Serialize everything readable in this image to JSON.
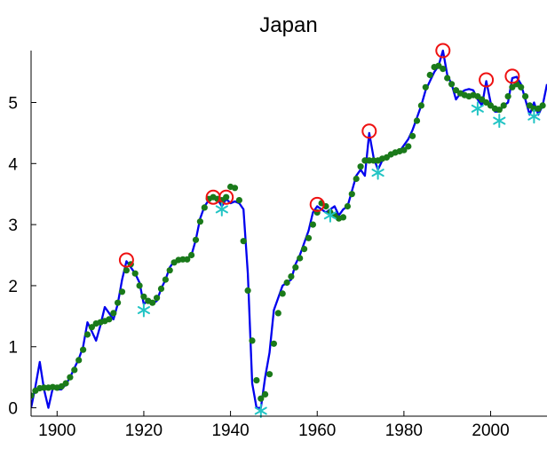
{
  "chart_data": {
    "type": "line",
    "title": "Japan",
    "xlabel": "",
    "ylabel": "",
    "xlim": [
      1894,
      2013
    ],
    "ylim": [
      -0.05,
      5.85
    ],
    "x_ticks": [
      1900,
      1920,
      1940,
      1960,
      1980,
      2000
    ],
    "y_ticks": [
      0,
      1,
      2,
      3,
      4,
      5
    ],
    "grid": false,
    "legend": "none",
    "colors": {
      "line": "#0000ee",
      "trend": "#1a7a1a",
      "peak": "#ee1111",
      "trough": "#22c4c4"
    },
    "series": [
      {
        "style": "line",
        "x": [
          1894,
          1895,
          1896,
          1897,
          1898,
          1899,
          1900,
          1901,
          1902,
          1903,
          1904,
          1905,
          1906,
          1907,
          1908,
          1909,
          1910,
          1911,
          1912,
          1913,
          1914,
          1915,
          1916,
          1917,
          1918,
          1919,
          1920,
          1921,
          1922,
          1923,
          1924,
          1925,
          1926,
          1927,
          1928,
          1929,
          1930,
          1931,
          1932,
          1933,
          1934,
          1935,
          1936,
          1937,
          1938,
          1939,
          1940,
          1941,
          1942,
          1943,
          1944,
          1945,
          1946,
          1947,
          1948,
          1949,
          1950,
          1951,
          1952,
          1953,
          1954,
          1955,
          1956,
          1957,
          1958,
          1959,
          1960,
          1961,
          1962,
          1963,
          1964,
          1965,
          1966,
          1967,
          1968,
          1969,
          1970,
          1971,
          1972,
          1973,
          1974,
          1975,
          1976,
          1977,
          1978,
          1979,
          1980,
          1981,
          1982,
          1983,
          1984,
          1985,
          1986,
          1987,
          1988,
          1989,
          1990,
          1991,
          1992,
          1993,
          1994,
          1995,
          1996,
          1997,
          1998,
          1999,
          2000,
          2001,
          2002,
          2003,
          2004,
          2005,
          2006,
          2007,
          2008,
          2009,
          2010,
          2011,
          2012,
          2013
        ],
        "y": [
          0.0,
          0.35,
          0.75,
          0.3,
          0.0,
          0.32,
          0.3,
          0.3,
          0.38,
          0.5,
          0.65,
          0.8,
          1.0,
          1.4,
          1.25,
          1.1,
          1.35,
          1.65,
          1.55,
          1.45,
          1.7,
          2.1,
          2.4,
          2.3,
          2.2,
          2.05,
          1.7,
          1.75,
          1.7,
          1.75,
          1.95,
          2.1,
          2.3,
          2.4,
          2.42,
          2.45,
          2.45,
          2.5,
          2.75,
          3.1,
          3.3,
          3.4,
          3.45,
          3.42,
          3.3,
          3.42,
          3.35,
          3.38,
          3.35,
          3.25,
          2.2,
          0.4,
          0.0,
          0.0,
          0.5,
          0.9,
          1.6,
          1.8,
          2.0,
          2.05,
          2.1,
          2.35,
          2.5,
          2.7,
          2.9,
          3.2,
          3.3,
          3.25,
          3.2,
          3.25,
          3.3,
          3.15,
          3.25,
          3.3,
          3.55,
          3.8,
          3.9,
          3.8,
          4.5,
          4.1,
          3.9,
          4.05,
          4.1,
          4.12,
          4.18,
          4.2,
          4.3,
          4.4,
          4.55,
          4.75,
          4.95,
          5.2,
          5.35,
          5.5,
          5.6,
          5.85,
          5.45,
          5.3,
          5.05,
          5.15,
          5.2,
          5.22,
          5.2,
          5.05,
          4.95,
          5.35,
          5.0,
          4.85,
          4.85,
          4.95,
          5.0,
          5.4,
          5.42,
          5.3,
          5.05,
          4.8,
          5.0,
          4.8,
          4.95,
          5.3
        ]
      },
      {
        "style": "dots",
        "x": [
          1894,
          1895,
          1896,
          1897,
          1898,
          1899,
          1900,
          1901,
          1902,
          1903,
          1904,
          1905,
          1906,
          1907,
          1908,
          1909,
          1910,
          1911,
          1912,
          1913,
          1914,
          1915,
          1916,
          1917,
          1918,
          1919,
          1920,
          1921,
          1922,
          1923,
          1924,
          1925,
          1926,
          1927,
          1928,
          1929,
          1930,
          1931,
          1932,
          1933,
          1934,
          1935,
          1936,
          1937,
          1938,
          1939,
          1940,
          1941,
          1942,
          1943,
          1944,
          1945,
          1946,
          1947,
          1948,
          1949,
          1950,
          1951,
          1952,
          1953,
          1954,
          1955,
          1956,
          1957,
          1958,
          1959,
          1960,
          1961,
          1962,
          1963,
          1964,
          1965,
          1966,
          1967,
          1968,
          1969,
          1970,
          1971,
          1972,
          1973,
          1974,
          1975,
          1976,
          1977,
          1978,
          1979,
          1980,
          1981,
          1982,
          1983,
          1984,
          1985,
          1986,
          1987,
          1988,
          1989,
          1990,
          1991,
          1992,
          1993,
          1994,
          1995,
          1996,
          1997,
          1998,
          1999,
          2000,
          2001,
          2002,
          2003,
          2004,
          2005,
          2006,
          2007,
          2008,
          2009,
          2010,
          2011,
          2012
        ],
        "y": [
          0.2,
          0.28,
          0.32,
          0.33,
          0.33,
          0.34,
          0.33,
          0.35,
          0.4,
          0.5,
          0.62,
          0.78,
          0.95,
          1.2,
          1.32,
          1.38,
          1.4,
          1.42,
          1.45,
          1.55,
          1.72,
          1.9,
          2.25,
          2.35,
          2.2,
          2.0,
          1.82,
          1.75,
          1.72,
          1.8,
          1.95,
          2.1,
          2.25,
          2.38,
          2.42,
          2.43,
          2.43,
          2.5,
          2.75,
          3.05,
          3.28,
          3.42,
          3.45,
          3.42,
          3.4,
          3.45,
          3.62,
          3.6,
          3.4,
          2.73,
          1.92,
          1.1,
          0.45,
          0.15,
          0.22,
          0.55,
          1.05,
          1.55,
          1.87,
          2.05,
          2.15,
          2.3,
          2.45,
          2.6,
          2.78,
          3.0,
          3.2,
          3.35,
          3.3,
          3.2,
          3.15,
          3.1,
          3.12,
          3.3,
          3.5,
          3.75,
          3.95,
          4.05,
          4.05,
          4.05,
          4.05,
          4.08,
          4.1,
          4.15,
          4.18,
          4.2,
          4.22,
          4.28,
          4.45,
          4.7,
          4.95,
          5.25,
          5.45,
          5.58,
          5.6,
          5.55,
          5.4,
          5.3,
          5.2,
          5.15,
          5.12,
          5.1,
          5.12,
          5.1,
          5.05,
          5.0,
          4.95,
          4.9,
          4.88,
          4.95,
          5.1,
          5.25,
          5.3,
          5.25,
          5.1,
          4.95,
          4.9,
          4.9,
          4.95
        ]
      },
      {
        "style": "peaks",
        "x": [
          1916,
          1936,
          1939,
          1960,
          1972,
          1989,
          1999,
          2005
        ],
        "y": [
          2.42,
          3.45,
          3.45,
          3.33,
          4.53,
          5.85,
          5.37,
          5.43
        ]
      },
      {
        "style": "troughs",
        "x": [
          1920,
          1938,
          1947,
          1963,
          1974,
          1997,
          2002,
          2010
        ],
        "y": [
          1.6,
          3.25,
          -0.05,
          3.15,
          3.85,
          4.9,
          4.7,
          4.77
        ]
      }
    ]
  }
}
